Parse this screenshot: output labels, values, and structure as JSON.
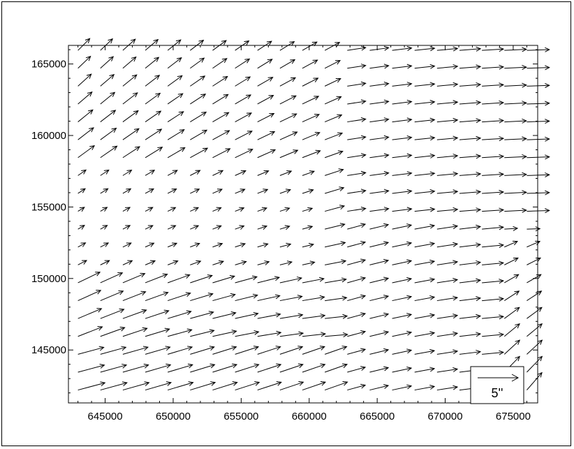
{
  "chart_data": {
    "type": "vector-field",
    "title": "",
    "xlabel": "",
    "ylabel": "",
    "xlim": [
      642300,
      676800
    ],
    "ylim": [
      141300,
      166300
    ],
    "x_ticks": [
      645000,
      650000,
      655000,
      660000,
      665000,
      670000,
      675000
    ],
    "x_tick_labels": [
      "645000",
      "650000",
      "655000",
      "660000",
      "665000",
      "670000",
      "675000"
    ],
    "y_ticks": [
      145000,
      150000,
      155000,
      160000,
      165000
    ],
    "y_tick_labels": [
      "145000",
      "150000",
      "155000",
      "160000",
      "165000"
    ],
    "grid": {
      "x_start": 643000,
      "x_step": 1650,
      "x_count": 21,
      "y_start": 142200,
      "y_step": 1250,
      "y_count": 20
    },
    "legend": {
      "label": "5''",
      "reference_magnitude": 5,
      "placement": "bottom-right"
    },
    "grid_lines": false,
    "colors": {
      "arrow": "#000000",
      "axis": "#000000",
      "background": "#ffffff"
    }
  }
}
